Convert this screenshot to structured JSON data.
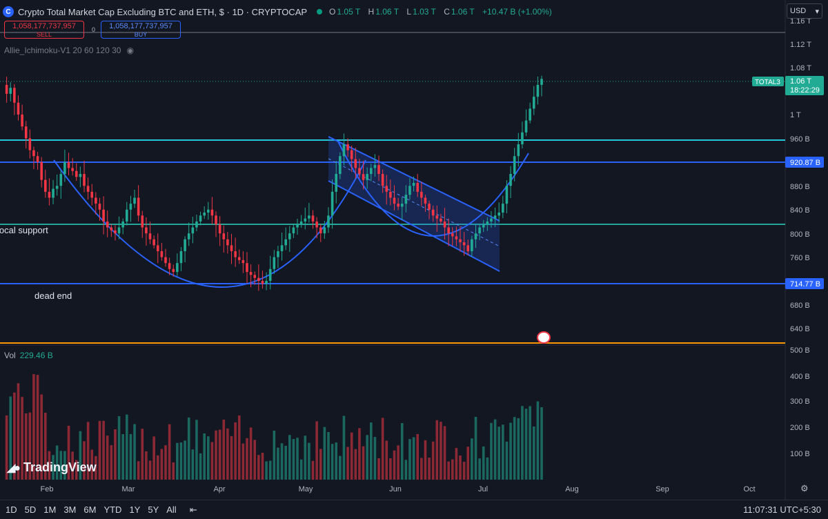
{
  "header": {
    "logo_letter": "C",
    "title": "Crypto Total Market Cap Excluding BTC and ETH, $ · 1D · CRYPTOCAP",
    "ohlc": {
      "o_label": "O",
      "o": "1.05 T",
      "h_label": "H",
      "h": "1.06 T",
      "l_label": "L",
      "l": "1.03 T",
      "c_label": "C",
      "c": "1.06 T",
      "change": "+10.47 B (+1.00%)"
    }
  },
  "trade": {
    "sell_value": "1,058,177,737,957",
    "sell_label": "SELL",
    "buy_value": "1,058,177,737,957",
    "buy_label": "BUY",
    "spread": "0"
  },
  "indicator_label": "Allie_Ichimoku-V1 20 60 120 30",
  "currency": "USD",
  "volume": {
    "label": "Vol",
    "value": "229.46 B"
  },
  "brand": "TradingView",
  "ranges": [
    "1D",
    "5D",
    "1M",
    "3M",
    "6M",
    "YTD",
    "1Y",
    "5Y",
    "All"
  ],
  "clock": "11:07:31 UTC+5:30",
  "annotations": {
    "support": "local support",
    "dead_end": "dead end"
  },
  "colors": {
    "bg": "#131722",
    "up": "#22ab94",
    "down": "#f23645",
    "line_cyan": "#26c6da",
    "line_blue": "#2962ff",
    "line_teal": "#26a69a",
    "line_orange": "#ff9800"
  },
  "chart_data": {
    "type": "candlestick",
    "symbol": "TOTAL3",
    "yaxis_ticks": [
      "1.16 T",
      "1.12 T",
      "1.08 T",
      "1 T",
      "960 B",
      "920 B",
      "880 B",
      "840 B",
      "800 B",
      "760 B",
      "720 B",
      "680 B",
      "640 B"
    ],
    "volume_axis_ticks": [
      "500 B",
      "400 B",
      "300 B",
      "200 B",
      "100 B"
    ],
    "xaxis_ticks": [
      "Feb",
      "Mar",
      "Apr",
      "May",
      "Jun",
      "Jul",
      "Aug",
      "Sep",
      "Oct"
    ],
    "last_price_label": "1.06 T",
    "countdown": "18:22:29",
    "level_labels": [
      "920.87 B",
      "714.77 B"
    ],
    "horizontal_levels": [
      {
        "value": 960,
        "color": "#26c6da"
      },
      {
        "value": 920.87,
        "color": "#2962ff"
      },
      {
        "value": 815,
        "color": "#26a69a"
      },
      {
        "value": 714.77,
        "color": "#2962ff"
      },
      {
        "value": 620,
        "color": "#ff9800"
      },
      {
        "value": 1150,
        "color": "#787b86"
      }
    ],
    "price_path": [
      1050,
      1035,
      1045,
      1020,
      1000,
      980,
      960,
      940,
      930,
      920,
      890,
      870,
      860,
      875,
      880,
      900,
      920,
      910,
      905,
      895,
      900,
      880,
      870,
      860,
      850,
      840,
      820,
      810,
      805,
      800,
      810,
      820,
      840,
      850,
      860,
      830,
      810,
      800,
      790,
      780,
      770,
      760,
      750,
      740,
      735,
      750,
      770,
      790,
      800,
      810,
      820,
      830,
      835,
      840,
      830,
      815,
      800,
      790,
      780,
      770,
      760,
      755,
      750,
      735,
      730,
      725,
      720,
      715,
      720,
      740,
      760,
      770,
      780,
      790,
      800,
      810,
      815,
      820,
      825,
      830,
      820,
      810,
      800,
      810,
      830,
      870,
      900,
      930,
      950,
      940,
      925,
      910,
      900,
      890,
      900,
      910,
      915,
      900,
      880,
      870,
      860,
      850,
      845,
      850,
      865,
      880,
      885,
      870,
      860,
      850,
      840,
      830,
      825,
      820,
      810,
      800,
      795,
      790,
      785,
      780,
      770,
      790,
      800,
      810,
      815,
      820,
      825,
      830,
      835,
      850,
      880,
      900,
      930,
      950,
      970,
      990,
      1010,
      1030,
      1050,
      1060
    ]
  }
}
